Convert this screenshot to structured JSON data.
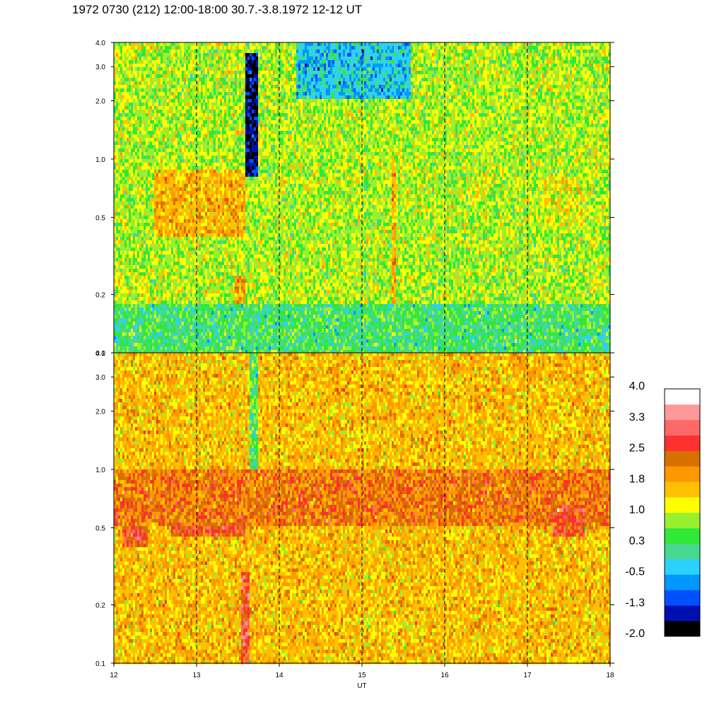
{
  "title": "1972 0730 (212) 12:00-18:00 30.7.-3.8.1972  12-12 UT",
  "chart_data": {
    "type": "heatmap",
    "title": "1972 0730 (212) 12:00-18:00 30.7.-3.8.1972  12-12 UT",
    "xlabel": "UT",
    "ylabel": "",
    "x_range": [
      12,
      18
    ],
    "x_ticks": [
      "12",
      "13",
      "14",
      "15",
      "16",
      "17",
      "18"
    ],
    "dashed_vertical_lines_at": [
      13,
      14,
      15,
      16,
      17
    ],
    "grid": false,
    "panels": [
      {
        "name": "",
        "position": "top",
        "y_scale": "log",
        "y_range": [
          0.1,
          4.0
        ],
        "y_ticks": [
          "0.1",
          "0.2",
          "0.5",
          "1.0",
          "2.0",
          "3.0",
          "4.0"
        ],
        "background_level": 0.9,
        "features": [
          {
            "x": [
              12.5,
              13.6
            ],
            "y": [
              0.4,
              0.9
            ],
            "level": 1.7
          },
          {
            "x": [
              13.45,
              13.6
            ],
            "y": [
              0.1,
              0.25
            ],
            "level": 1.8
          },
          {
            "x": [
              13.6,
              13.75
            ],
            "y": [
              0.8,
              3.5
            ],
            "level": -1.6
          },
          {
            "x": [
              14.2,
              15.6
            ],
            "y": [
              2.0,
              4.0
            ],
            "level": -0.3
          },
          {
            "x": [
              15.35,
              15.4
            ],
            "y": [
              0.1,
              1.0
            ],
            "level": 1.8
          },
          {
            "x": [
              17.2,
              17.7
            ],
            "y": [
              0.45,
              0.8
            ],
            "level": 1.2
          },
          {
            "x": [
              12.0,
              18.0
            ],
            "y": [
              0.1,
              0.18
            ],
            "level": 0.3
          }
        ]
      },
      {
        "name": "",
        "position": "bottom",
        "y_scale": "log",
        "y_range": [
          0.1,
          4.0
        ],
        "y_ticks": [
          "0.1",
          "0.2",
          "0.5",
          "1.0",
          "2.0",
          "3.0",
          "4.0"
        ],
        "background_level": 1.6,
        "features": [
          {
            "x": [
              12.1,
              12.4
            ],
            "y": [
              0.4,
              0.6
            ],
            "level": 2.6
          },
          {
            "x": [
              12.7,
              13.6
            ],
            "y": [
              0.45,
              0.8
            ],
            "level": 2.6
          },
          {
            "x": [
              13.55,
              13.65
            ],
            "y": [
              0.1,
              0.3
            ],
            "level": 2.7
          },
          {
            "x": [
              13.65,
              13.75
            ],
            "y": [
              0.5,
              4.0
            ],
            "level": 0.4
          },
          {
            "x": [
              12.0,
              18.0
            ],
            "y": [
              0.5,
              1.0
            ],
            "level": 2.2
          },
          {
            "x": [
              17.3,
              17.7
            ],
            "y": [
              0.45,
              0.65
            ],
            "level": 2.6
          }
        ]
      }
    ],
    "colorbar": {
      "labels": [
        "4.0",
        "3.3",
        "2.5",
        "1.8",
        "1.0",
        "0.3",
        "-0.5",
        "-1.3",
        "-2.0"
      ],
      "min": -2.0,
      "max": 4.0,
      "colors": [
        "#000000",
        "#0010b0",
        "#0050ff",
        "#0098ff",
        "#2cd0ff",
        "#48d890",
        "#30e838",
        "#98f030",
        "#ffff00",
        "#ffc000",
        "#ff9800",
        "#d87000",
        "#ff3030",
        "#ff6868",
        "#ff9898",
        "#ffffff"
      ]
    }
  }
}
